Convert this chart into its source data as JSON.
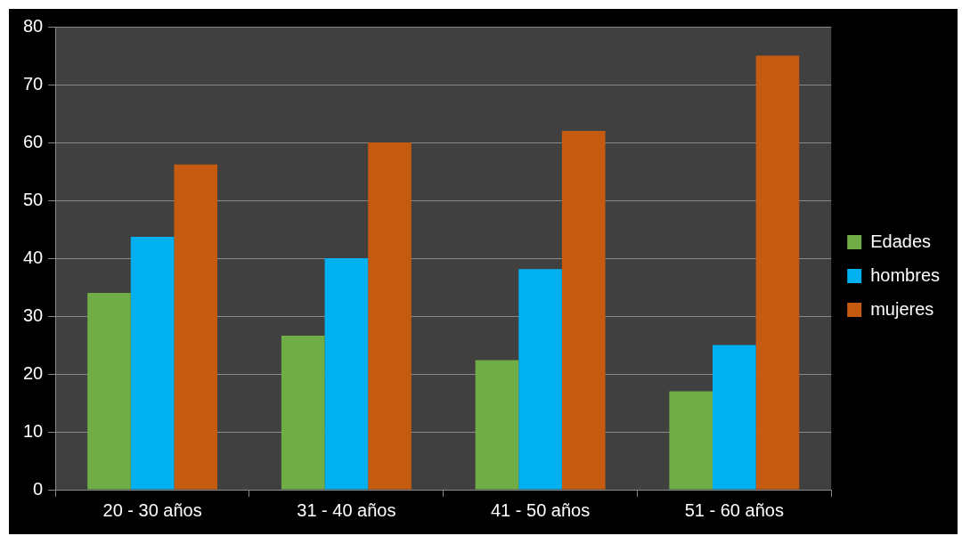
{
  "chart_data": {
    "type": "bar",
    "categories": [
      "20 - 30 años",
      "31 - 40 años",
      "41 - 50 años",
      "51 - 60 años"
    ],
    "series": [
      {
        "name": "Edades",
        "color": "#70ad47",
        "values": [
          34,
          26.6,
          22.4,
          17
        ]
      },
      {
        "name": "hombres",
        "color": "#00b0f0",
        "values": [
          43.7,
          40,
          38.1,
          25
        ]
      },
      {
        "name": "mujeres",
        "color": "#c55a11",
        "values": [
          56.2,
          60,
          62,
          75
        ]
      }
    ],
    "ylim": [
      0,
      80
    ],
    "yticks": [
      0,
      10,
      20,
      30,
      40,
      50,
      60,
      70,
      80
    ],
    "grid": "y",
    "legend": "right"
  }
}
